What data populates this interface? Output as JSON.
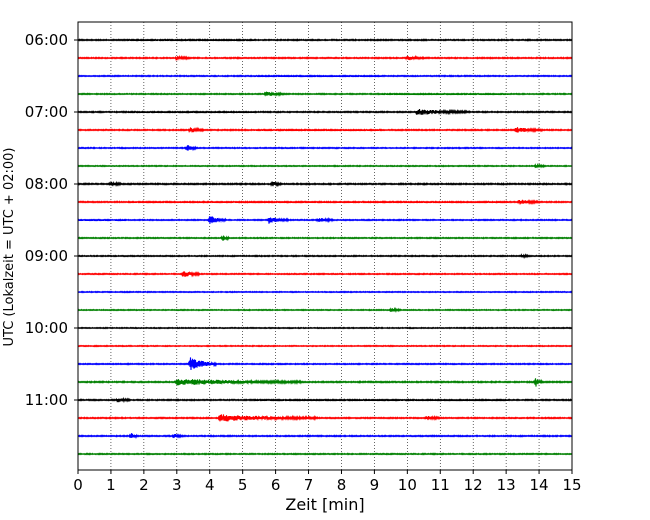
{
  "chart_data": {
    "type": "line",
    "title": "",
    "xlabel": "Zeit  [min]",
    "ylabel": "UTC (Lokalzeit = UTC + 02:00)",
    "xlim": [
      0,
      15
    ],
    "x_ticks": [
      "0",
      "1",
      "2",
      "3",
      "4",
      "5",
      "6",
      "7",
      "8",
      "9",
      "10",
      "11",
      "12",
      "13",
      "14",
      "15"
    ],
    "y_tick_labels": [
      "06:00",
      "07:00",
      "08:00",
      "09:00",
      "10:00",
      "11:00"
    ],
    "trace_interval_min": 15,
    "grid": "vertical dotted at each minute",
    "trace_color_cycle": [
      "#000000",
      "#ff0000",
      "#0000ff",
      "#008000"
    ],
    "traces": [
      {
        "start": "06:00",
        "color": "#000000",
        "noise": 0.55,
        "events": []
      },
      {
        "start": "06:15",
        "color": "#ff0000",
        "noise": 0.55,
        "events": [
          {
            "t": 3.0,
            "amp": 0.8,
            "dur": 0.4
          },
          {
            "t": 10.0,
            "amp": 0.9,
            "dur": 0.5
          }
        ]
      },
      {
        "start": "06:30",
        "color": "#0000ff",
        "noise": 0.5,
        "events": []
      },
      {
        "start": "06:45",
        "color": "#008000",
        "noise": 0.5,
        "events": [
          {
            "t": 5.7,
            "amp": 1.1,
            "dur": 0.6
          }
        ]
      },
      {
        "start": "07:00",
        "color": "#000000",
        "noise": 0.55,
        "events": [
          {
            "t": 10.3,
            "amp": 1.3,
            "dur": 1.6
          }
        ]
      },
      {
        "start": "07:15",
        "color": "#ff0000",
        "noise": 0.55,
        "events": [
          {
            "t": 3.4,
            "amp": 1.2,
            "dur": 0.4
          },
          {
            "t": 13.3,
            "amp": 1.2,
            "dur": 0.8
          }
        ]
      },
      {
        "start": "07:30",
        "color": "#0000ff",
        "noise": 0.5,
        "events": [
          {
            "t": 3.3,
            "amp": 1.5,
            "dur": 0.3
          }
        ]
      },
      {
        "start": "07:45",
        "color": "#008000",
        "noise": 0.45,
        "events": [
          {
            "t": 13.9,
            "amp": 0.8,
            "dur": 0.3
          }
        ]
      },
      {
        "start": "08:00",
        "color": "#000000",
        "noise": 0.6,
        "events": [
          {
            "t": 1.0,
            "amp": 0.9,
            "dur": 0.3
          },
          {
            "t": 5.9,
            "amp": 1.0,
            "dur": 0.3
          }
        ]
      },
      {
        "start": "08:15",
        "color": "#ff0000",
        "noise": 0.55,
        "events": [
          {
            "t": 13.4,
            "amp": 1.1,
            "dur": 0.6
          }
        ]
      },
      {
        "start": "08:30",
        "color": "#0000ff",
        "noise": 0.5,
        "events": [
          {
            "t": 4.0,
            "amp": 2.0,
            "dur": 0.5
          },
          {
            "t": 5.8,
            "amp": 1.5,
            "dur": 0.6
          },
          {
            "t": 7.3,
            "amp": 0.9,
            "dur": 0.5
          }
        ]
      },
      {
        "start": "08:45",
        "color": "#008000",
        "noise": 0.5,
        "events": [
          {
            "t": 4.4,
            "amp": 1.6,
            "dur": 0.2
          }
        ]
      },
      {
        "start": "09:00",
        "color": "#000000",
        "noise": 0.5,
        "events": [
          {
            "t": 13.5,
            "amp": 0.7,
            "dur": 0.2
          }
        ]
      },
      {
        "start": "09:15",
        "color": "#ff0000",
        "noise": 0.5,
        "events": [
          {
            "t": 3.2,
            "amp": 1.4,
            "dur": 0.5
          }
        ]
      },
      {
        "start": "09:30",
        "color": "#0000ff",
        "noise": 0.45,
        "events": []
      },
      {
        "start": "09:45",
        "color": "#008000",
        "noise": 0.45,
        "events": [
          {
            "t": 9.5,
            "amp": 0.8,
            "dur": 0.3
          }
        ]
      },
      {
        "start": "10:00",
        "color": "#000000",
        "noise": 0.45,
        "events": []
      },
      {
        "start": "10:15",
        "color": "#ff0000",
        "noise": 0.45,
        "events": []
      },
      {
        "start": "10:30",
        "color": "#0000ff",
        "noise": 0.5,
        "events": [
          {
            "t": 3.4,
            "amp": 3.2,
            "dur": 0.8
          }
        ]
      },
      {
        "start": "10:45",
        "color": "#008000",
        "noise": 0.6,
        "events": [
          {
            "t": 3.0,
            "amp": 1.4,
            "dur": 3.8
          },
          {
            "t": 13.9,
            "amp": 2.0,
            "dur": 0.2
          }
        ]
      },
      {
        "start": "11:00",
        "color": "#000000",
        "noise": 0.55,
        "events": [
          {
            "t": 1.2,
            "amp": 0.8,
            "dur": 0.4
          }
        ]
      },
      {
        "start": "11:15",
        "color": "#ff0000",
        "noise": 0.55,
        "events": [
          {
            "t": 4.3,
            "amp": 1.6,
            "dur": 3.0
          },
          {
            "t": 10.6,
            "amp": 0.9,
            "dur": 0.4
          }
        ]
      },
      {
        "start": "11:30",
        "color": "#0000ff",
        "noise": 0.55,
        "events": [
          {
            "t": 1.6,
            "amp": 1.8,
            "dur": 0.2
          },
          {
            "t": 2.9,
            "amp": 1.0,
            "dur": 0.3
          }
        ]
      },
      {
        "start": "11:45",
        "color": "#008000",
        "noise": 0.5,
        "events": []
      }
    ]
  }
}
